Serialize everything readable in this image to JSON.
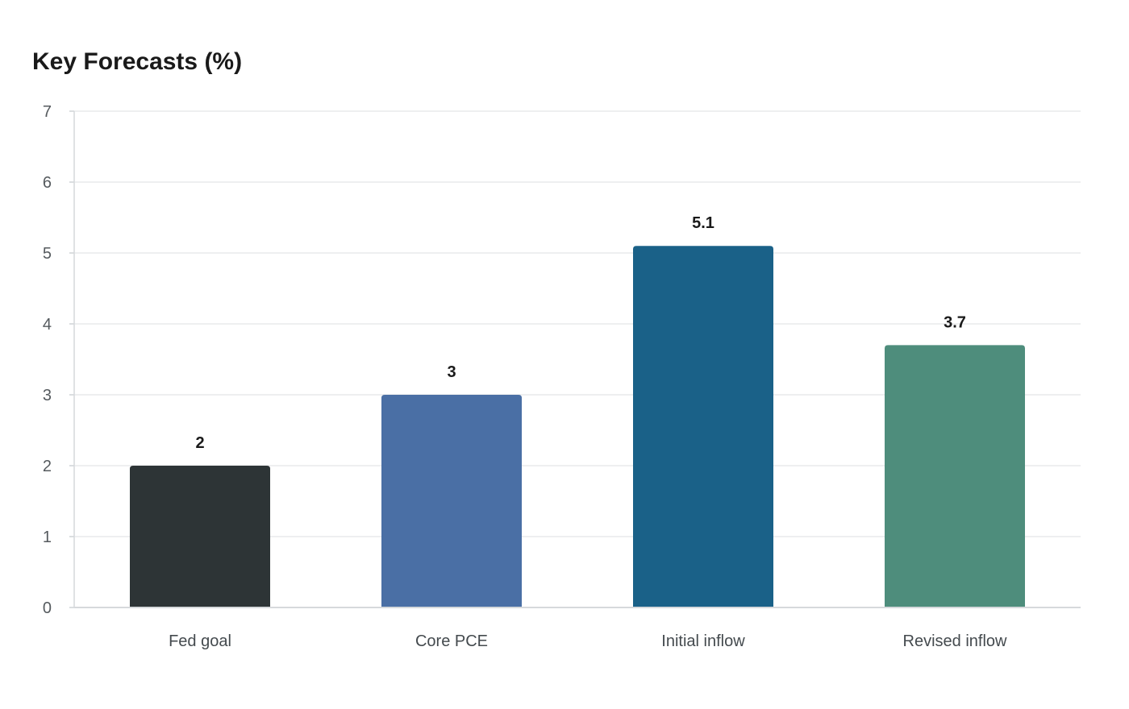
{
  "chart_data": {
    "type": "bar",
    "title": "Key Forecasts (%)",
    "xlabel": "",
    "ylabel": "",
    "categories": [
      "Fed goal",
      "Core PCE",
      "Initial inflow",
      "Revised inflow"
    ],
    "values": [
      2,
      3,
      5.1,
      3.7
    ],
    "value_labels": [
      "2",
      "3",
      "5.1",
      "3.7"
    ],
    "bar_colors": [
      "#2d3436",
      "#4a6fa5",
      "#1a6188",
      "#4e8d7c"
    ],
    "ylim": [
      0,
      7
    ],
    "yticks": [
      0,
      1,
      2,
      3,
      4,
      5,
      6,
      7
    ],
    "grid": true,
    "legend": "none"
  }
}
